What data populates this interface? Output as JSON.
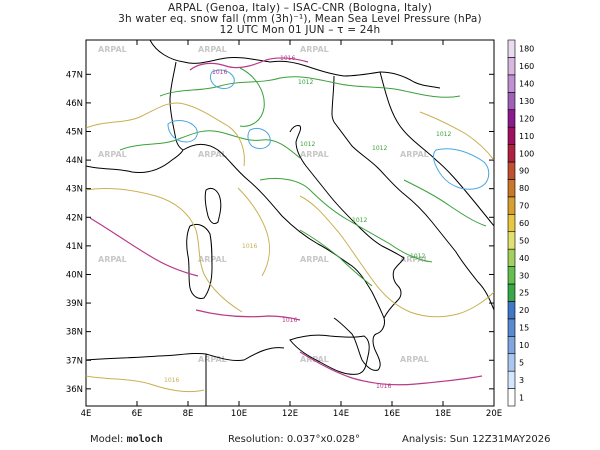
{
  "header": {
    "line1": "ARPAL (Genoa, Italy)  –  ISAC-CNR (Bologna, Italy)",
    "line2": "3h water eq. snow fall (mm (3h)⁻¹), Mean Sea Level Pressure (hPa)",
    "line3": "12 UTC Mon 01 JUN  –  τ = 24h"
  },
  "footer": {
    "model_label": "Model:",
    "model_value": "moloch",
    "resolution_label": "Resolution:",
    "resolution_value": "0.037°x0.028°",
    "analysis_label": "Analysis:",
    "analysis_value": "Sun 12Z31MAY2026"
  },
  "map": {
    "lon_range": [
      4,
      20
    ],
    "lat_range": [
      35.4,
      48.2
    ],
    "x_ticks": [
      "4E",
      "6E",
      "8E",
      "10E",
      "12E",
      "14E",
      "16E",
      "18E",
      "20E"
    ],
    "y_ticks": [
      "36N",
      "37N",
      "38N",
      "39N",
      "40N",
      "41N",
      "42N",
      "43N",
      "44N",
      "45N",
      "46N",
      "47N"
    ],
    "watermark": "ARPAL",
    "isobar_labels": [
      "1016",
      "1016",
      "1012",
      "1012",
      "1012",
      "1012",
      "1012",
      "1016",
      "1016",
      "1016",
      "1016",
      "1012"
    ]
  },
  "colorbar": {
    "levels": [
      "1",
      "3",
      "5",
      "10",
      "15",
      "20",
      "25",
      "30",
      "40",
      "50",
      "60",
      "70",
      "80",
      "90",
      "100",
      "110",
      "120",
      "130",
      "140",
      "160",
      "180"
    ],
    "colors": [
      "#ffffff",
      "#d6e6ff",
      "#a8c8f0",
      "#7fa6e0",
      "#5a8ad0",
      "#3f78c8",
      "#36a848",
      "#63c050",
      "#a4d060",
      "#e2e070",
      "#e8c840",
      "#d8a030",
      "#c87828",
      "#c05030",
      "#b02040",
      "#a01060",
      "#8c1a8c",
      "#a060b8",
      "#c090d0",
      "#d8b8e0",
      "#eadcf0"
    ]
  }
}
